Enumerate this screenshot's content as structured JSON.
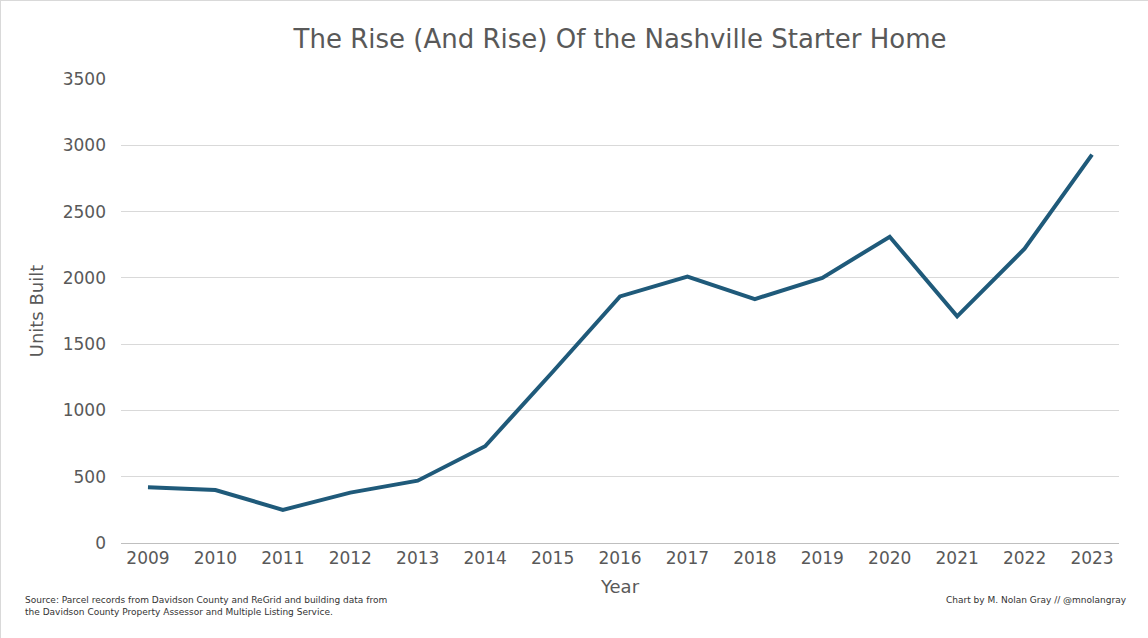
{
  "chart_data": {
    "type": "line",
    "title": "The Rise (And Rise) Of the Nashville Starter Home",
    "x_label": "Year",
    "y_label": "Units Built",
    "x": [
      2009,
      2010,
      2011,
      2012,
      2013,
      2014,
      2015,
      2016,
      2017,
      2018,
      2019,
      2020,
      2021,
      2022,
      2023
    ],
    "values": [
      420,
      400,
      250,
      380,
      470,
      730,
      1290,
      1860,
      2010,
      1840,
      2000,
      2310,
      1710,
      2220,
      2930
    ],
    "color": "#1f5a7a",
    "xlim": [
      2008.6,
      2023.4
    ],
    "xticks": [
      2009,
      2010,
      2011,
      2012,
      2013,
      2014,
      2015,
      2016,
      2017,
      2018,
      2019,
      2020,
      2021,
      2022,
      2023
    ],
    "ylim": [
      0,
      3500
    ],
    "yticks": [
      0,
      500,
      1000,
      1500,
      2000,
      2500,
      3000,
      3500
    ],
    "grid": true,
    "source": [
      "Source: Parcel records from Davidson County and ReGrid and building data from",
      "the Davidson County Property Assessor and Multiple Listing Service."
    ],
    "credit": "Chart by M. Nolan Gray // @mnolangray"
  }
}
